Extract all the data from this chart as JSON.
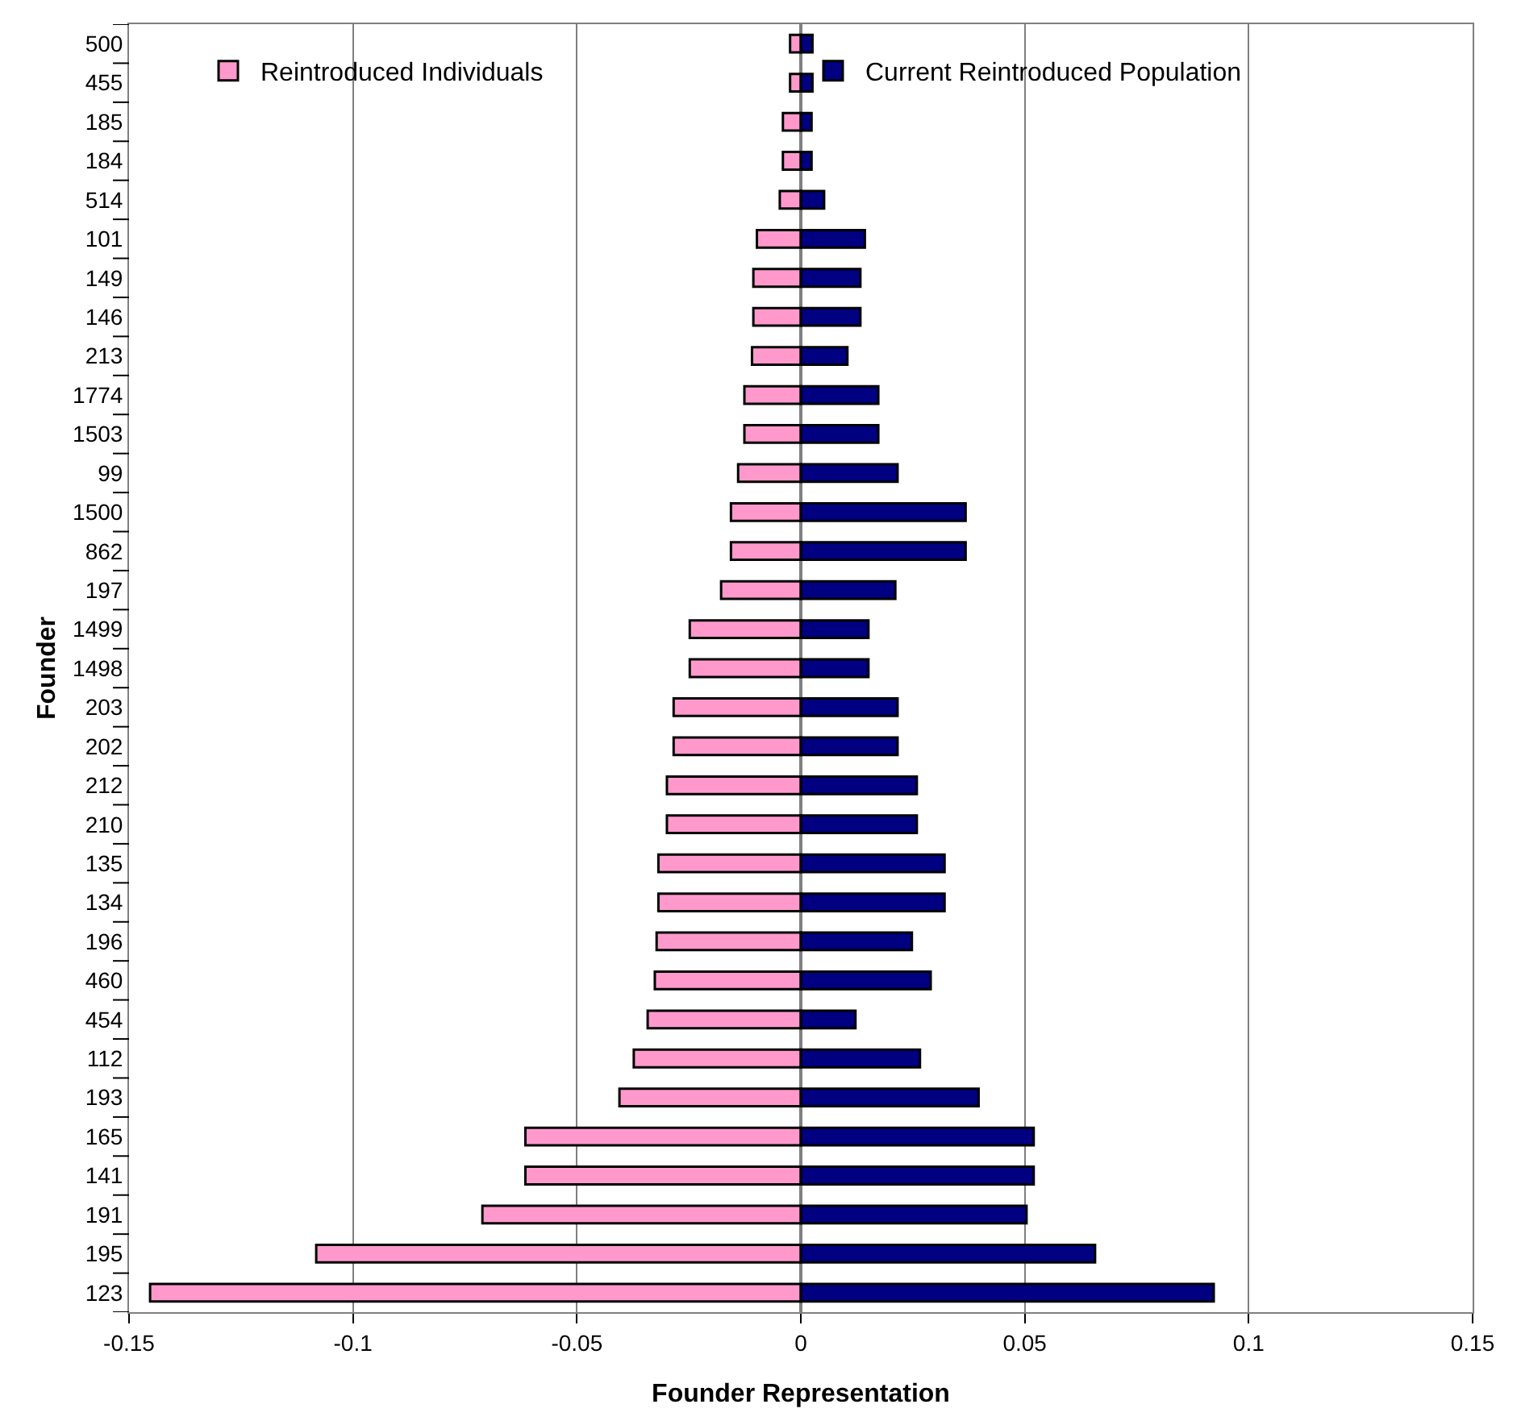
{
  "chart_data": {
    "type": "bar",
    "orientation": "horizontal",
    "xlabel": "Founder Representation",
    "ylabel": "Founder",
    "categories": [
      "500",
      "455",
      "185",
      "184",
      "514",
      "101",
      "149",
      "146",
      "213",
      "1774",
      "1503",
      "99",
      "1500",
      "862",
      "197",
      "1499",
      "1498",
      "203",
      "202",
      "212",
      "210",
      "135",
      "134",
      "196",
      "460",
      "454",
      "112",
      "193",
      "165",
      "141",
      "191",
      "195",
      "123"
    ],
    "series": [
      {
        "name": "Reintroduced Individuals",
        "color": "#ff99cc",
        "values": [
          -0.0024,
          -0.0024,
          -0.004,
          -0.004,
          -0.0047,
          -0.0098,
          -0.0106,
          -0.0106,
          -0.0109,
          -0.0126,
          -0.0126,
          -0.014,
          -0.0156,
          -0.0156,
          -0.0178,
          -0.0248,
          -0.0248,
          -0.0284,
          -0.0284,
          -0.0299,
          -0.0299,
          -0.0318,
          -0.0318,
          -0.0322,
          -0.0326,
          -0.0342,
          -0.0373,
          -0.0405,
          -0.0615,
          -0.0615,
          -0.0711,
          -0.1082,
          -0.1453
        ]
      },
      {
        "name": "Current Reintroduced Population",
        "color": "#000080",
        "values": [
          0.0026,
          0.0026,
          0.0024,
          0.0024,
          0.0052,
          0.0143,
          0.0133,
          0.0133,
          0.0104,
          0.0173,
          0.0173,
          0.0216,
          0.0368,
          0.0368,
          0.0211,
          0.0151,
          0.0151,
          0.0216,
          0.0216,
          0.0259,
          0.0259,
          0.0321,
          0.0321,
          0.0248,
          0.029,
          0.0122,
          0.0266,
          0.0397,
          0.052,
          0.052,
          0.0504,
          0.0657,
          0.0922
        ]
      }
    ],
    "xlim": [
      -0.15,
      0.15
    ],
    "xticks": [
      -0.15,
      -0.1,
      -0.05,
      0,
      0.05,
      0.1,
      0.15
    ],
    "grid": "x",
    "legend": "top",
    "stacked": true
  }
}
